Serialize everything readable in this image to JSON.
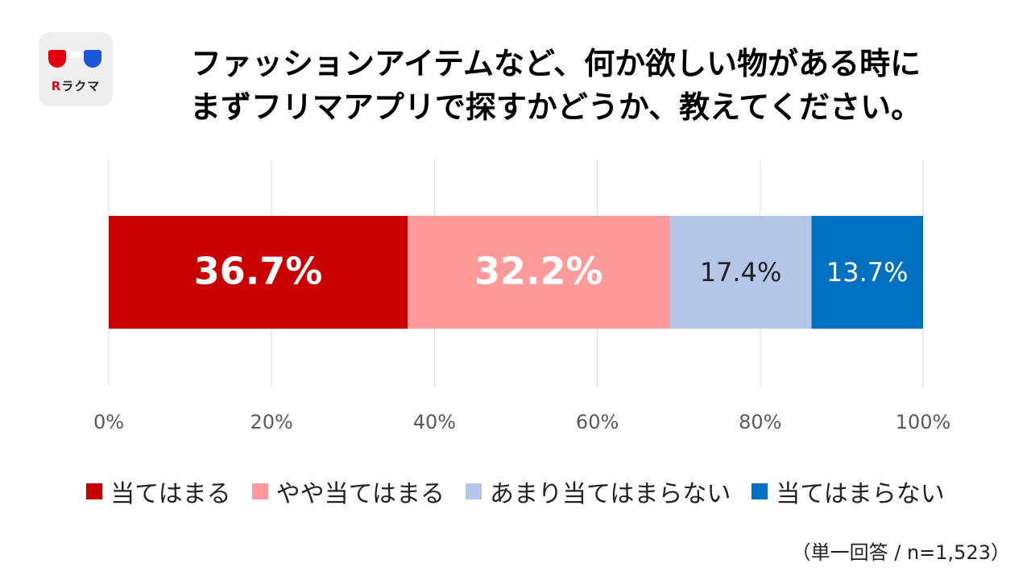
{
  "logo": {
    "brand_mark": "R",
    "brand_text": "ラクマ"
  },
  "title": {
    "line1": "ファッションアイテムなど、何か欲しい物がある時に",
    "line2": "まずフリマアプリで探すかどうか、教えてください。"
  },
  "chart_data": {
    "type": "bar",
    "orientation": "horizontal",
    "stacked": true,
    "categories": [
      ""
    ],
    "series": [
      {
        "name": "当てはまる",
        "values": [
          36.7
        ],
        "label": "36.7%",
        "color": "#c80000",
        "label_color": "#ffffff"
      },
      {
        "name": "やや当てはまる",
        "values": [
          32.2
        ],
        "label": "32.2%",
        "color": "#fe9a99",
        "label_color": "#ffffff"
      },
      {
        "name": "あまり当てはまらない",
        "values": [
          17.4
        ],
        "label": "17.4%",
        "color": "#b4c7e7",
        "label_color": "#222222"
      },
      {
        "name": "当てはまらない",
        "values": [
          13.7
        ],
        "label": "13.7%",
        "color": "#0070c0",
        "label_color": "#ffffff"
      }
    ],
    "xlim": [
      0,
      100
    ],
    "xticks": [
      "0%",
      "20%",
      "40%",
      "60%",
      "80%",
      "100%"
    ],
    "grid": true,
    "legend_position": "bottom"
  },
  "note": "（単一回答 / n=1,523）"
}
